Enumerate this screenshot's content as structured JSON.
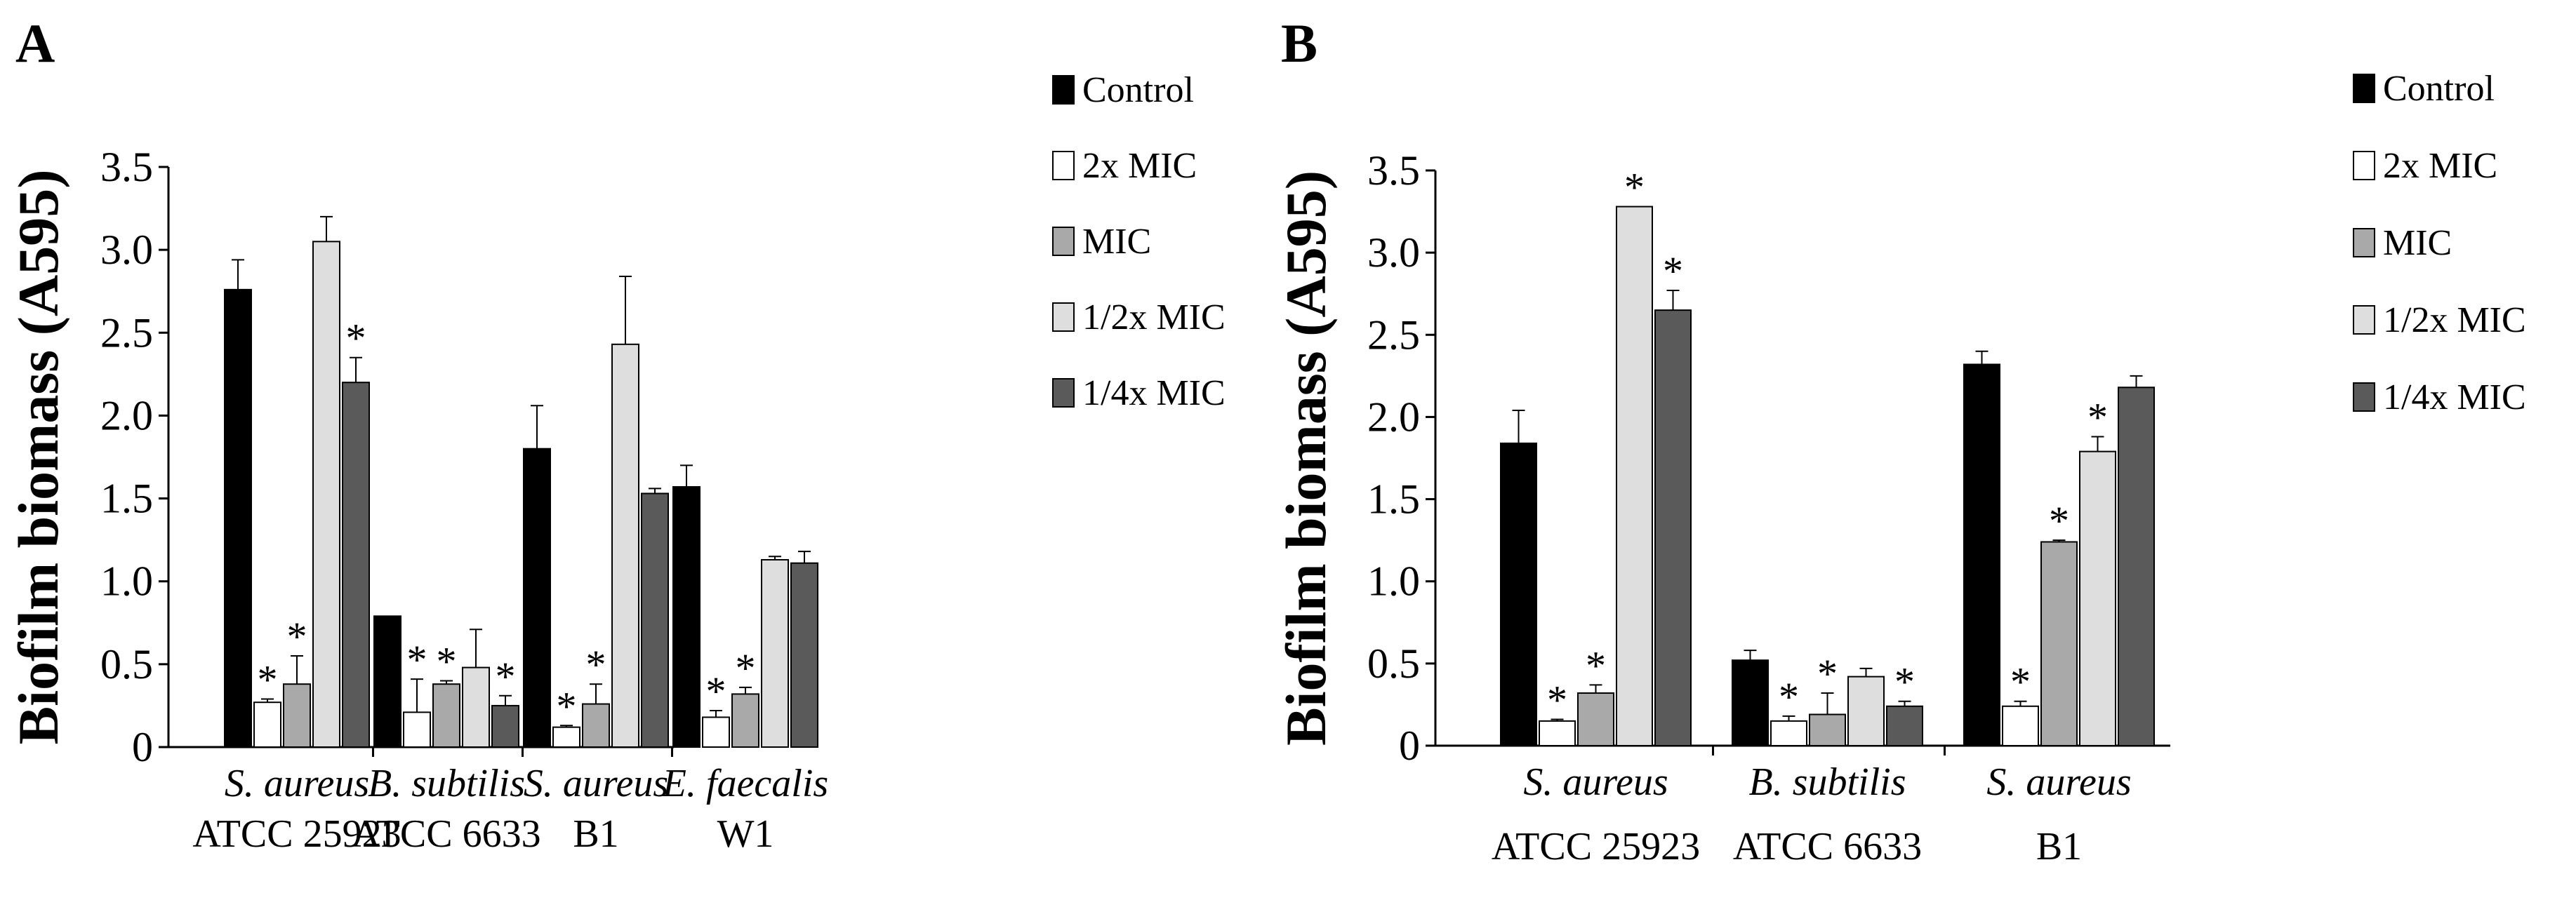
{
  "chart_data": [
    {
      "type": "bar",
      "panel_label": "A",
      "ylabel": "Biofilm biomass (A595)",
      "ylim": [
        0,
        3.5
      ],
      "yticks": [
        "0",
        "0.5",
        "1.0",
        "1.5",
        "2.0",
        "2.5",
        "3.0",
        "3.5"
      ],
      "grid": false,
      "legend_position": "top-right",
      "categories": [
        {
          "species": "S. aureus",
          "strain": "ATCC 25923"
        },
        {
          "species": "B. subtilis",
          "strain": "ATCC 6633"
        },
        {
          "species": "S. aureus",
          "strain": "B1"
        },
        {
          "species": "E. faecalis",
          "strain": "W1"
        }
      ],
      "series": [
        {
          "name": "Control",
          "color": "#000000",
          "values": [
            2.76,
            0.79,
            1.8,
            1.57
          ],
          "errors": [
            0.18,
            0.0,
            0.26,
            0.13
          ],
          "significant": [
            false,
            false,
            false,
            false
          ]
        },
        {
          "name": "2x MIC",
          "color": "#ffffff",
          "values": [
            0.27,
            0.21,
            0.12,
            0.18
          ],
          "errors": [
            0.02,
            0.2,
            0.01,
            0.04
          ],
          "significant": [
            true,
            true,
            true,
            true
          ]
        },
        {
          "name": "MIC",
          "color": "#a9a9a9",
          "values": [
            0.38,
            0.38,
            0.26,
            0.32
          ],
          "errors": [
            0.17,
            0.02,
            0.12,
            0.04
          ],
          "significant": [
            true,
            true,
            true,
            true
          ]
        },
        {
          "name": "1/2x MIC",
          "color": "#dedede",
          "values": [
            3.05,
            0.48,
            2.43,
            1.13
          ],
          "errors": [
            0.15,
            0.23,
            0.41,
            0.02
          ],
          "significant": [
            false,
            false,
            false,
            false
          ]
        },
        {
          "name": "1/4x MIC",
          "color": "#5a5a5a",
          "values": [
            2.2,
            0.25,
            1.53,
            1.11
          ],
          "errors": [
            0.15,
            0.06,
            0.03,
            0.07
          ],
          "significant": [
            true,
            true,
            false,
            false
          ]
        }
      ]
    },
    {
      "type": "bar",
      "panel_label": "B",
      "ylabel": "Biofilm biomass (A595)",
      "ylim": [
        0,
        3.5
      ],
      "yticks": [
        "0",
        "0.5",
        "1.0",
        "1.5",
        "2.0",
        "2.5",
        "3.0",
        "3.5"
      ],
      "grid": false,
      "legend_position": "top-right",
      "categories": [
        {
          "species": "S. aureus",
          "strain": "ATCC 25923"
        },
        {
          "species": "B. subtilis",
          "strain": "ATCC 6633"
        },
        {
          "species": "S. aureus",
          "strain": "B1"
        }
      ],
      "series": [
        {
          "name": "Control",
          "color": "#000000",
          "values": [
            1.84,
            0.52,
            2.32
          ],
          "errors": [
            0.2,
            0.06,
            0.08
          ],
          "significant": [
            false,
            false,
            false
          ]
        },
        {
          "name": "2x MIC",
          "color": "#ffffff",
          "values": [
            0.15,
            0.15,
            0.24
          ],
          "errors": [
            0.01,
            0.03,
            0.03
          ],
          "significant": [
            true,
            true,
            true
          ]
        },
        {
          "name": "MIC",
          "color": "#a9a9a9",
          "values": [
            0.32,
            0.19,
            1.24
          ],
          "errors": [
            0.05,
            0.13,
            0.01
          ],
          "significant": [
            true,
            true,
            true
          ]
        },
        {
          "name": "1/2x MIC",
          "color": "#dedede",
          "values": [
            3.28,
            0.42,
            1.79
          ],
          "errors": [
            0.0,
            0.05,
            0.09
          ],
          "significant": [
            true,
            false,
            true
          ]
        },
        {
          "name": "1/4x MIC",
          "color": "#5a5a5a",
          "values": [
            2.65,
            0.24,
            2.18
          ],
          "errors": [
            0.12,
            0.03,
            0.07
          ],
          "significant": [
            true,
            true,
            false
          ]
        }
      ]
    }
  ]
}
